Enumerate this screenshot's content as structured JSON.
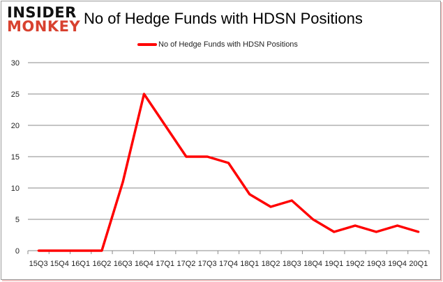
{
  "logo": {
    "line1": "INSIDER",
    "line2": "MONKEY"
  },
  "chart_data": {
    "type": "line",
    "title": "No of Hedge Funds with HDSN Positions",
    "xlabel": "",
    "ylabel": "",
    "categories": [
      "15Q3",
      "15Q4",
      "16Q1",
      "16Q2",
      "16Q3",
      "16Q4",
      "17Q1",
      "17Q2",
      "17Q3",
      "17Q4",
      "18Q1",
      "18Q2",
      "18Q3",
      "18Q4",
      "19Q1",
      "19Q2",
      "19Q3",
      "19Q4",
      "20Q1"
    ],
    "series": [
      {
        "name": "No of Hedge Funds with HDSN Positions",
        "color": "#ff0000",
        "values": [
          0,
          0,
          0,
          0,
          11,
          25,
          20,
          15,
          15,
          14,
          9,
          7,
          8,
          5,
          3,
          4,
          3,
          4,
          3
        ]
      }
    ],
    "ylim": [
      0,
      30
    ],
    "yticks": [
      0,
      5,
      10,
      15,
      20,
      25,
      30
    ],
    "grid": true,
    "legend_position": "top"
  }
}
